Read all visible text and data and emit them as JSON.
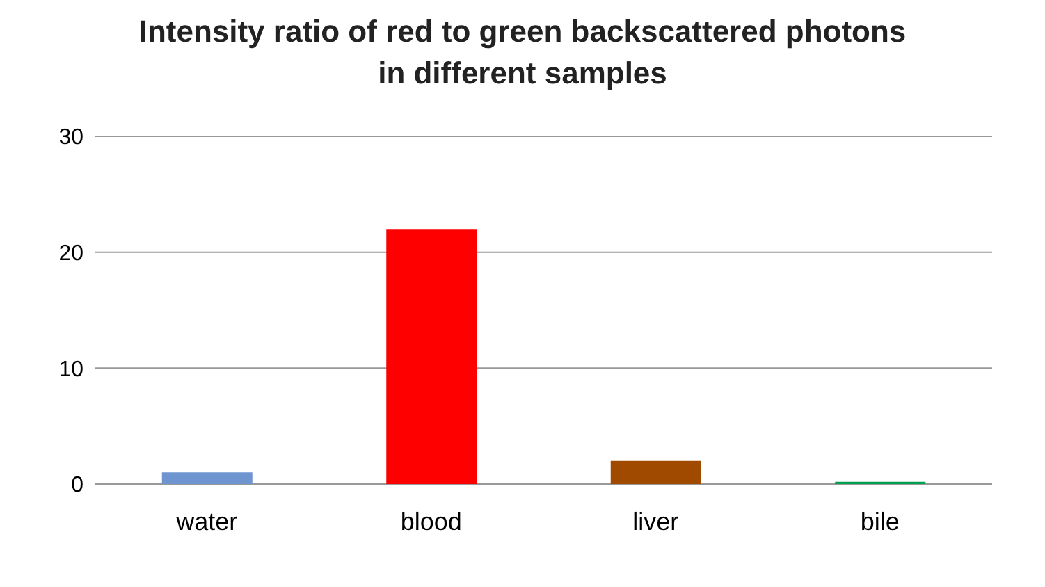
{
  "chart_data": {
    "type": "bar",
    "title": "Intensity ratio of red to green backscattered photons\nin different samples",
    "categories": [
      "water",
      "blood",
      "liver",
      "bile"
    ],
    "values": [
      1,
      22,
      2,
      0.2
    ],
    "colors": [
      "#6f95d0",
      "#ff0000",
      "#a04a00",
      "#00a050"
    ],
    "ylim": [
      0,
      30
    ],
    "yticks": [
      0,
      10,
      20,
      30
    ],
    "grid": "y"
  }
}
